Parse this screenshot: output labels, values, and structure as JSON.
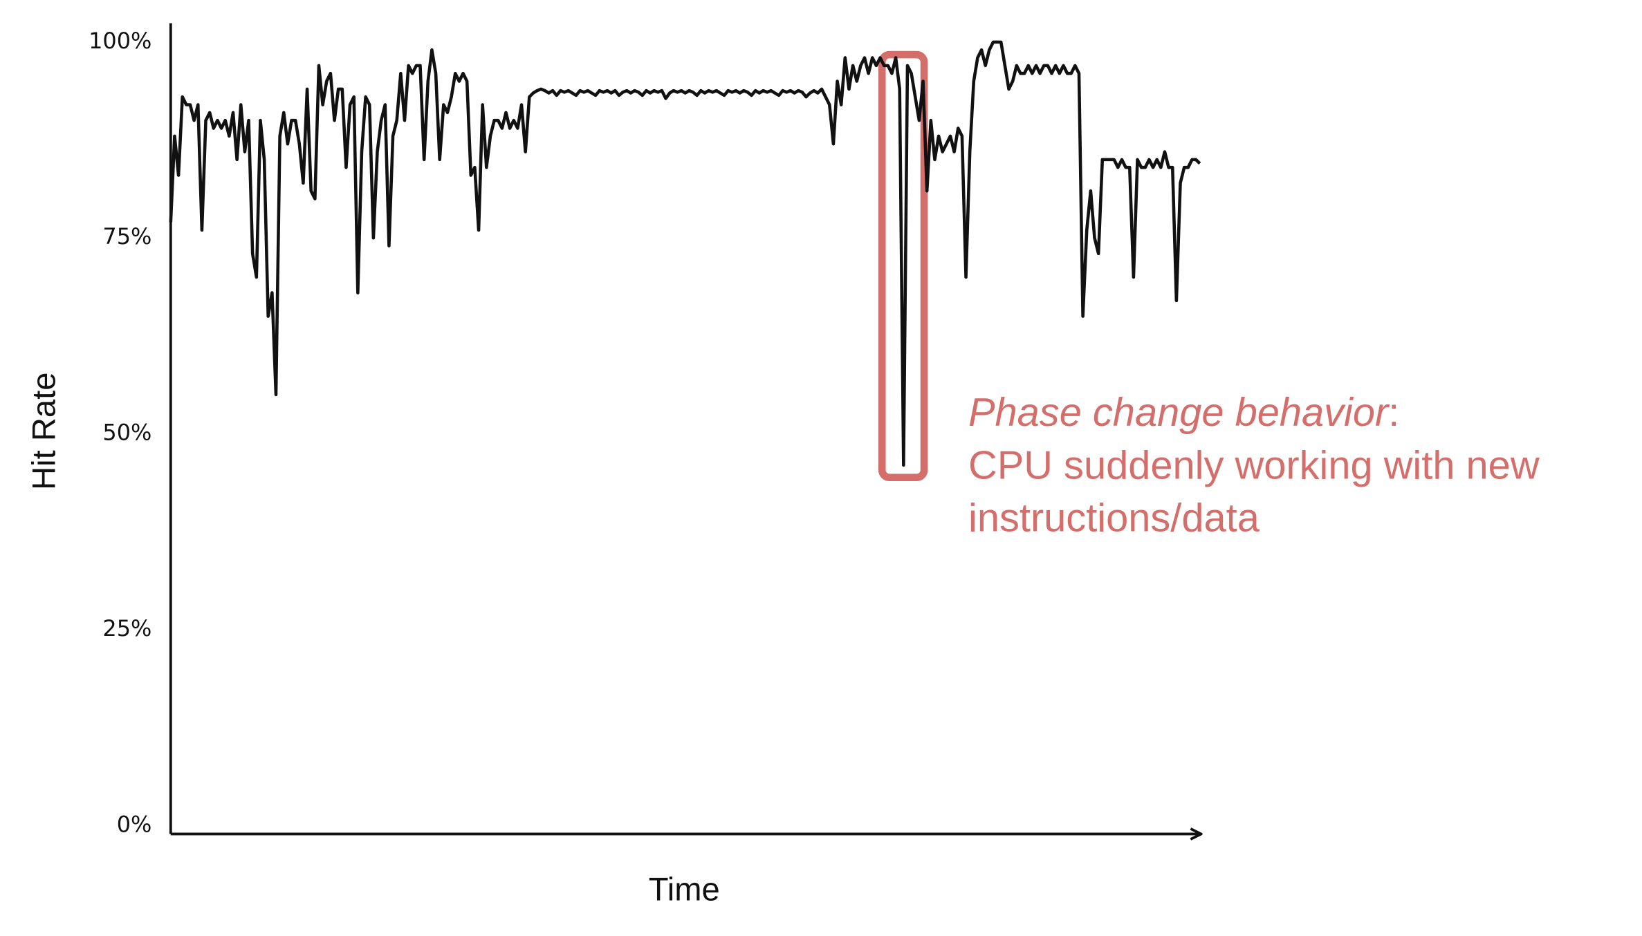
{
  "chart_data": {
    "type": "line",
    "xlabel": "Time",
    "ylabel": "Hit Rate",
    "color": "#111111",
    "ylim": [
      0,
      100
    ],
    "yticks": [
      {
        "value": 0,
        "label": "0%"
      },
      {
        "value": 25,
        "label": "25%"
      },
      {
        "value": 50,
        "label": "50%"
      },
      {
        "value": 75,
        "label": "75%"
      },
      {
        "value": 100,
        "label": "100%"
      }
    ],
    "annotation": {
      "emphasis": "Phase change behavior",
      "suffix": ":",
      "lines": [
        "CPU suddenly working with new",
        "instructions/data"
      ],
      "color": "#d46e6b"
    },
    "values": [
      77,
      88,
      83,
      93,
      92,
      92,
      90,
      92,
      76,
      90,
      91,
      89,
      90,
      89,
      90,
      88,
      91,
      85,
      92,
      86,
      90,
      73,
      70,
      90,
      85,
      65,
      68,
      55,
      88,
      91,
      87,
      90,
      90,
      87,
      82,
      94,
      81,
      80,
      97,
      92,
      95,
      96,
      90,
      94,
      94,
      84,
      92,
      93,
      68,
      86,
      93,
      92,
      75,
      86,
      90,
      92,
      74,
      88,
      90,
      96,
      90,
      97,
      96,
      97,
      97,
      85,
      95,
      99,
      96,
      85,
      92,
      91,
      93,
      96,
      95,
      96,
      95,
      83,
      84,
      76,
      92,
      84,
      88,
      90,
      90,
      89,
      91,
      89,
      90,
      89,
      92,
      86,
      93,
      93.5,
      93.8,
      94,
      93.8,
      93.5,
      93.8,
      93.2,
      93.8,
      93.6,
      93.8,
      93.5,
      93.2,
      93.8,
      93.6,
      93.8,
      93.5,
      93.2,
      93.8,
      93.6,
      93.8,
      93.5,
      93.8,
      93.2,
      93.6,
      93.8,
      93.5,
      93.8,
      93.6,
      93.2,
      93.8,
      93.5,
      93.8,
      93.6,
      93.8,
      92.8,
      93.5,
      93.8,
      93.6,
      93.8,
      93.5,
      93.8,
      93.6,
      93.2,
      93.8,
      93.5,
      93.8,
      93.6,
      93.8,
      93.5,
      93.2,
      93.8,
      93.6,
      93.8,
      93.5,
      93.8,
      93.6,
      93.2,
      93.8,
      93.5,
      93.8,
      93.6,
      93.8,
      93.5,
      93.2,
      93.8,
      93.6,
      93.8,
      93.5,
      93.8,
      93.6,
      93,
      93.5,
      93.8,
      93.5,
      94,
      93,
      92,
      87,
      95,
      92,
      98,
      94,
      97,
      95,
      97,
      98,
      96,
      98,
      97,
      98,
      97,
      97,
      96,
      98,
      94,
      46,
      97,
      96,
      93,
      90,
      95,
      81,
      90,
      85,
      88,
      86,
      87,
      88,
      86,
      89,
      88,
      70,
      86,
      95,
      98,
      99,
      97,
      99,
      100,
      100,
      100,
      97,
      94,
      95,
      97,
      96,
      96,
      97,
      96,
      97,
      96,
      97,
      97,
      96,
      97,
      96,
      97,
      96,
      96,
      97,
      96,
      65,
      76,
      81,
      75,
      73,
      85,
      85,
      85,
      85,
      84,
      85,
      84,
      84,
      70,
      85,
      84,
      84,
      85,
      84,
      85,
      84,
      86,
      84,
      84,
      67,
      82,
      84,
      84,
      85,
      85,
      84.5
    ]
  }
}
